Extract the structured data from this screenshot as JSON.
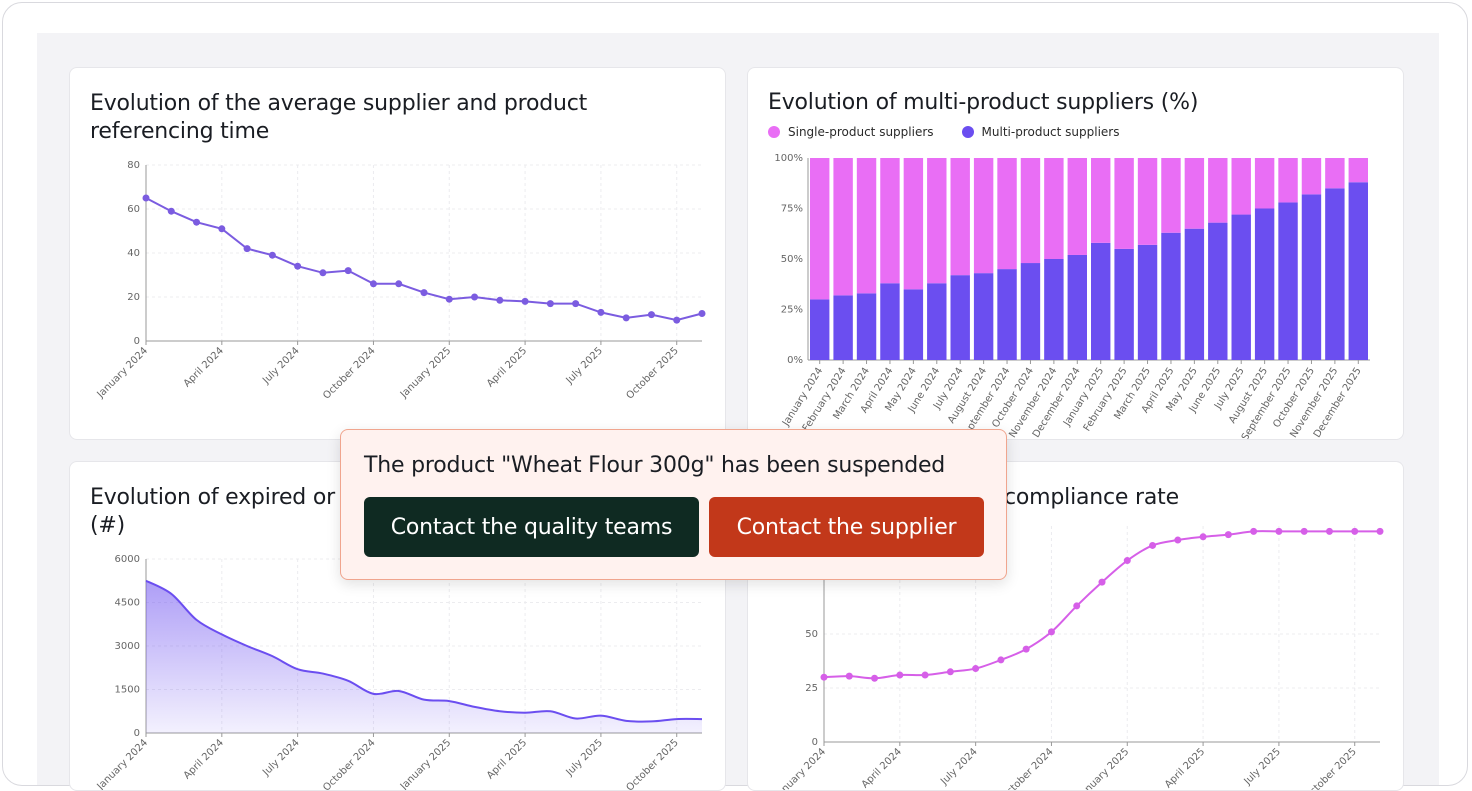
{
  "colors": {
    "purple": "#6b4ef0",
    "pink": "#e96ef5",
    "magenta": "#d65fe8",
    "quality_button": "#0f2a22",
    "supplier_button": "#c2381a"
  },
  "cards": {
    "referencing": {
      "title_line1": "Evolution of the average supplier and product",
      "title_line2": "referencing time"
    },
    "multi": {
      "title": "Evolution of multi-product suppliers (%)"
    },
    "expired": {
      "title_line1": "Evolution of expired or",
      "title_line2": "(#)"
    },
    "compliance": {
      "title": "compliance rate"
    }
  },
  "toast": {
    "message": "The product \"Wheat Flour 300g\" has been suspended",
    "quality_label": "Contact the quality teams",
    "supplier_label": "Contact the supplier"
  },
  "chart_data": [
    {
      "type": "line",
      "title": "Evolution of the average supplier and product referencing time",
      "x_tick_labels": [
        "January 2024",
        "April 2024",
        "July 2024",
        "October 2024",
        "January 2025",
        "April 2025",
        "July 2025",
        "October 2025"
      ],
      "y_tick_labels": [
        "0",
        "20",
        "40",
        "60",
        "80"
      ],
      "ylim": [
        0,
        80
      ],
      "grid": true,
      "series": [
        {
          "color": "#7b5ce0",
          "values": [
            65,
            59,
            54,
            51,
            42,
            39,
            34,
            31,
            32,
            26,
            26,
            22,
            19,
            20,
            18.5,
            18,
            17,
            17,
            13,
            10.5,
            12,
            9.5,
            12.5
          ]
        }
      ]
    },
    {
      "type": "bar",
      "stacked": true,
      "title": "Evolution of multi-product suppliers (%)",
      "categories": [
        "January 2024",
        "February 2024",
        "March 2024",
        "April 2024",
        "May 2024",
        "June 2024",
        "July 2024",
        "August 2024",
        "September 2024",
        "October 2024",
        "November 2024",
        "December 2024",
        "January 2025",
        "February 2025",
        "March 2025",
        "April 2025",
        "May 2025",
        "June 2025",
        "July 2025",
        "August 2025",
        "September 2025",
        "October 2025",
        "November 2025",
        "December 2025"
      ],
      "y_tick_labels": [
        "0%",
        "25%",
        "50%",
        "75%",
        "100%"
      ],
      "ylim": [
        0,
        100
      ],
      "legend_position": "top-left",
      "series": [
        {
          "name": "Multi-product suppliers",
          "color": "#6b4ef0",
          "values": [
            30,
            32,
            33,
            38,
            35,
            38,
            42,
            43,
            45,
            48,
            50,
            52,
            58,
            55,
            57,
            63,
            65,
            68,
            72,
            75,
            78,
            82,
            85,
            88
          ]
        },
        {
          "name": "Single-product suppliers",
          "color": "#e96ef5",
          "values": [
            70,
            68,
            67,
            62,
            65,
            62,
            58,
            57,
            55,
            52,
            50,
            48,
            42,
            45,
            43,
            37,
            35,
            32,
            28,
            25,
            22,
            18,
            15,
            12
          ]
        }
      ]
    },
    {
      "type": "area",
      "title": "Evolution of expired or (#)",
      "x_tick_labels": [
        "January 2024",
        "April 2024",
        "July 2024",
        "October 2024",
        "January 2025",
        "April 2025",
        "July 2025",
        "October 2025"
      ],
      "y_tick_labels": [
        "0",
        "1500",
        "3000",
        "4500",
        "6000"
      ],
      "ylim": [
        0,
        6000
      ],
      "grid": true,
      "series": [
        {
          "color": "#6b4ef0",
          "values": [
            5250,
            4800,
            3900,
            3400,
            3000,
            2650,
            2200,
            2050,
            1800,
            1350,
            1450,
            1150,
            1100,
            900,
            750,
            700,
            750,
            500,
            600,
            420,
            400,
            480,
            480
          ]
        }
      ]
    },
    {
      "type": "line",
      "title": "compliance rate",
      "x_tick_labels": [
        "January 2024",
        "April 2024",
        "July 2024",
        "October 2024",
        "January 2025",
        "April 2025",
        "July 2025",
        "October 2025"
      ],
      "y_tick_labels": [
        "0",
        "25",
        "50"
      ],
      "ylim": [
        0,
        100
      ],
      "grid": true,
      "series": [
        {
          "color": "#d65fe8",
          "values": [
            30,
            30.5,
            29.5,
            31,
            31,
            32.5,
            34,
            38,
            43,
            51,
            63,
            74,
            84,
            91,
            93.5,
            95,
            96,
            97.5,
            97.5,
            97.5,
            97.5,
            97.5,
            97.5
          ]
        }
      ]
    }
  ]
}
